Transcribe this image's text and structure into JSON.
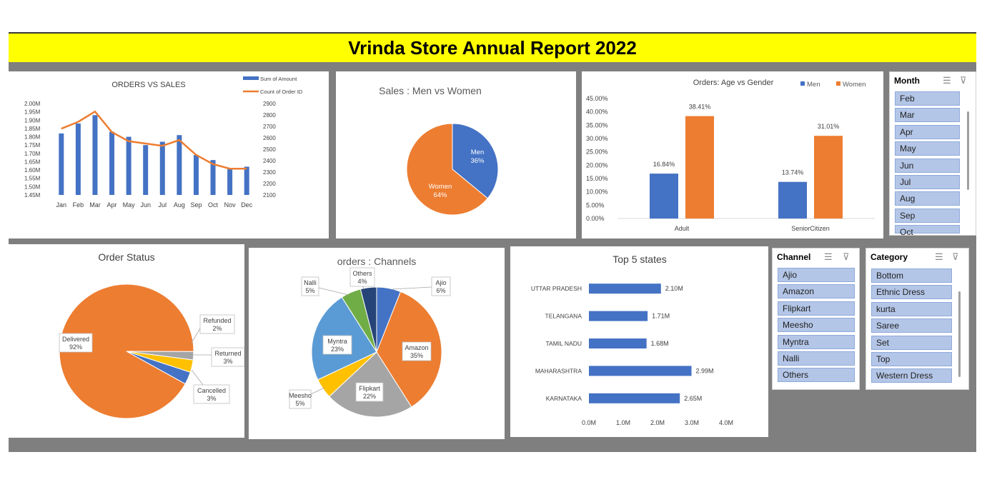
{
  "banner": {
    "title": "Vrinda Store Annual Report 2022"
  },
  "colors": {
    "blue": "#4472c4",
    "orange": "#ed7d31",
    "gray": "#a5a5a5",
    "yellow": "#ffc000",
    "light_blue": "#5b9bd5",
    "green": "#70ad47",
    "navy": "#264478",
    "slicer_item": "#b4c6e7",
    "banner": "#ffff00"
  },
  "chart_data": [
    {
      "id": "orders_vs_sales",
      "type": "bar",
      "title": "ORDERS VS SALES",
      "categories": [
        "Jan",
        "Feb",
        "Mar",
        "Apr",
        "May",
        "Jun",
        "Jul",
        "Aug",
        "Sep",
        "Oct",
        "Nov",
        "Dec"
      ],
      "series": [
        {
          "name": "Sum of Amount",
          "type": "bar",
          "axis": "left",
          "values": [
            1.82,
            1.88,
            1.93,
            1.83,
            1.8,
            1.75,
            1.77,
            1.81,
            1.69,
            1.66,
            1.61,
            1.62
          ]
        },
        {
          "name": "Count of Order ID",
          "type": "line",
          "axis": "right",
          "values": [
            2680,
            2740,
            2830,
            2650,
            2570,
            2550,
            2530,
            2580,
            2450,
            2370,
            2330,
            2330
          ]
        }
      ],
      "ylim": [
        1.45,
        2.0
      ],
      "y_ticks": [
        "1.45M",
        "1.50M",
        "1.55M",
        "1.60M",
        "1.65M",
        "1.70M",
        "1.75M",
        "1.80M",
        "1.85M",
        "1.90M",
        "1.95M",
        "2.00M"
      ],
      "y2lim": [
        2100,
        2900
      ],
      "y2_ticks": [
        "2100",
        "2200",
        "2300",
        "2400",
        "2500",
        "2600",
        "2700",
        "2800",
        "2900"
      ],
      "legend": "top-right"
    },
    {
      "id": "sales_men_women",
      "type": "pie",
      "title": "Sales : Men vs Women",
      "slices": [
        {
          "label": "Men",
          "value": 36,
          "pct": "36%",
          "color": "#4472c4"
        },
        {
          "label": "Women",
          "value": 64,
          "pct": "64%",
          "color": "#ed7d31"
        }
      ]
    },
    {
      "id": "age_vs_gender",
      "type": "bar",
      "title": "Orders: Age vs Gender",
      "categories": [
        "Adult",
        "SeniorCitizen"
      ],
      "series": [
        {
          "name": "Men",
          "values": [
            16.84,
            13.74
          ],
          "labels": [
            "16.84%",
            "13.74%"
          ],
          "color": "#4472c4"
        },
        {
          "name": "Women",
          "values": [
            38.41,
            31.01
          ],
          "labels": [
            "38.41%",
            "31.01%"
          ],
          "color": "#ed7d31"
        }
      ],
      "ylim": [
        0,
        45
      ],
      "y_ticks": [
        "0.00%",
        "5.00%",
        "10.00%",
        "15.00%",
        "20.00%",
        "25.00%",
        "30.00%",
        "35.00%",
        "40.00%",
        "45.00%"
      ],
      "legend": "top-right"
    },
    {
      "id": "order_status",
      "type": "pie",
      "title": "Order Status",
      "slices": [
        {
          "label": "Delivered",
          "value": 92,
          "pct": "92%",
          "color": "#ed7d31"
        },
        {
          "label": "Refunded",
          "value": 2,
          "pct": "2%",
          "color": "#a5a5a5"
        },
        {
          "label": "Returned",
          "value": 3,
          "pct": "3%",
          "color": "#ffc000"
        },
        {
          "label": "Cancelled",
          "value": 3,
          "pct": "3%",
          "color": "#4472c4"
        }
      ]
    },
    {
      "id": "orders_channels",
      "type": "pie",
      "title": "orders : Channels",
      "slices": [
        {
          "label": "Ajio",
          "value": 6,
          "pct": "6%",
          "color": "#4472c4"
        },
        {
          "label": "Amazon",
          "value": 35,
          "pct": "35%",
          "color": "#ed7d31"
        },
        {
          "label": "Flipkart",
          "value": 22,
          "pct": "22%",
          "color": "#a5a5a5"
        },
        {
          "label": "Meesho",
          "value": 5,
          "pct": "5%",
          "color": "#ffc000"
        },
        {
          "label": "Myntra",
          "value": 23,
          "pct": "23%",
          "color": "#5b9bd5"
        },
        {
          "label": "Nalli",
          "value": 5,
          "pct": "5%",
          "color": "#70ad47"
        },
        {
          "label": "Others",
          "value": 4,
          "pct": "4%",
          "color": "#264478"
        }
      ]
    },
    {
      "id": "top5_states",
      "type": "bar",
      "orientation": "horizontal",
      "title": "Top 5 states",
      "categories": [
        "UTTAR PRADESH",
        "TELANGANA",
        "TAMIL NADU",
        "MAHARASHTRA",
        "KARNATAKA"
      ],
      "values": [
        2.1,
        1.71,
        1.68,
        2.99,
        2.65
      ],
      "labels": [
        "2.10M",
        "1.71M",
        "1.68M",
        "2.99M",
        "2.65M"
      ],
      "xlim": [
        0,
        4
      ],
      "x_ticks": [
        "0.0M",
        "1.0M",
        "2.0M",
        "3.0M",
        "4.0M"
      ]
    }
  ],
  "slicers": {
    "month": {
      "title": "Month",
      "items": [
        "Feb",
        "Mar",
        "Apr",
        "May",
        "Jun",
        "Jul",
        "Aug",
        "Sep",
        "Oct"
      ]
    },
    "channel": {
      "title": "Channel",
      "items": [
        "Ajio",
        "Amazon",
        "Flipkart",
        "Meesho",
        "Myntra",
        "Nalli",
        "Others"
      ]
    },
    "category": {
      "title": "Category",
      "items": [
        "Bottom",
        "Ethnic Dress",
        "kurta",
        "Saree",
        "Set",
        "Top",
        "Western Dress"
      ]
    }
  }
}
